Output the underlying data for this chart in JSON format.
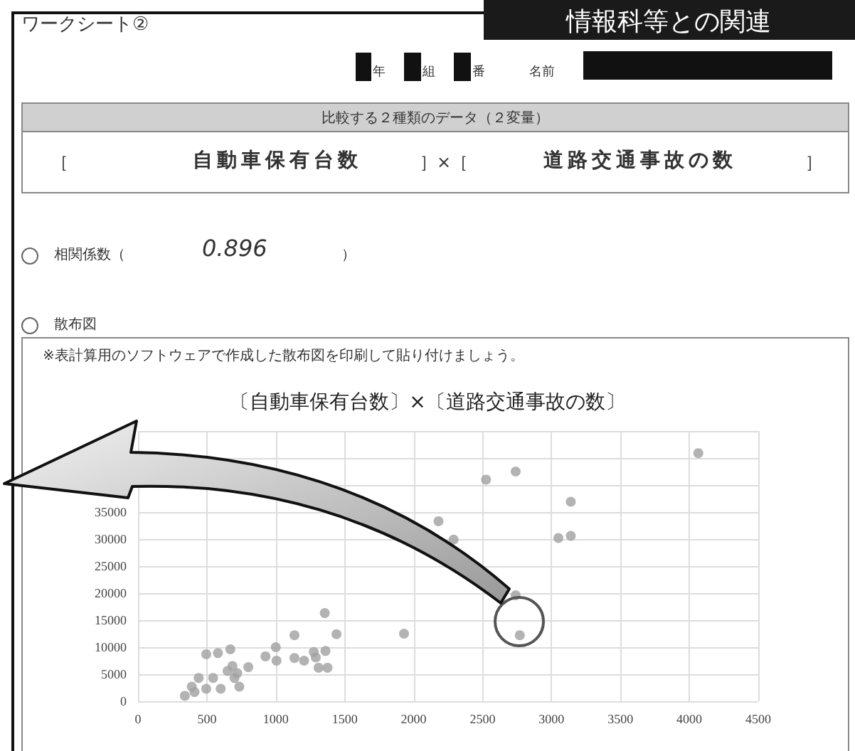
{
  "chart_data": {
    "type": "scatter",
    "title": "〔自動車保有台数〕×〔道路交通事故の数〕",
    "annotations": [
      "情報科等との関連",
      "ワークシート②",
      "年",
      "組",
      "番",
      "名前",
      "比較する２種類のデータ（２変量）",
      "［",
      "自動車保有台数",
      "］×［",
      "道路交通事故の数",
      "］",
      "相関係数（",
      "0.896",
      "）",
      "散布図",
      "※表計算用のソフトウェアで作成した散布図を印刷して貼り付けましょう。"
    ],
    "x": [
      340,
      390,
      410,
      440,
      495,
      495,
      545,
      580,
      600,
      670,
      650,
      685,
      720,
      735,
      700,
      800,
      925,
      1000,
      1005,
      1135,
      1135,
      1205,
      1275,
      1290,
      1310,
      1355,
      1360,
      1375,
      1440,
      1930,
      2180,
      2290,
      2525,
      2740,
      3140,
      3050,
      3140,
      2740,
      2770,
      4065
    ],
    "series": [
      {
        "color": "#a0a0a0",
        "values": [
          1000,
          2700,
          1700,
          4300,
          2300,
          8700,
          4300,
          8900,
          2300,
          9600,
          5600,
          6500,
          5200,
          2700,
          4300,
          6300,
          8300,
          10000,
          7500,
          12200,
          8000,
          7500,
          9100,
          8100,
          6200,
          16300,
          9300,
          6200,
          12400,
          12500,
          33300,
          29900,
          41000,
          42500,
          36900,
          30200,
          30600,
          19600,
          12200,
          45900
        ]
      }
    ],
    "xlim": [
      0,
      4500
    ],
    "xticks": [
      0,
      500,
      1000,
      1500,
      2000,
      2500,
      3000,
      3500,
      4000,
      4500
    ],
    "ylim": [
      0,
      50000
    ],
    "yticks": [
      0,
      5000,
      10000,
      15000,
      20000,
      25000,
      30000,
      35000,
      {
        "value": 40000,
        "label": null
      },
      {
        "value": 45000,
        "label": null
      },
      {
        "value": 50000,
        "label": null
      }
    ],
    "grid": true,
    "marker": "circle"
  }
}
